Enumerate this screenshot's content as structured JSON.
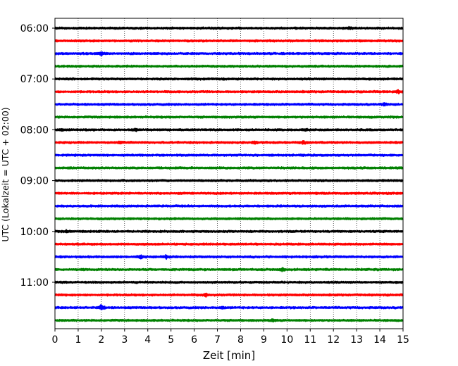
{
  "chart_data": {
    "type": "line",
    "subtype": "helicorder-seismogram",
    "title": "",
    "xlabel": "Zeit  [min]",
    "ylabel": "UTC (Lokalzeit = UTC + 02:00)",
    "xlim": [
      0,
      15
    ],
    "x_ticks": [
      "0",
      "1",
      "2",
      "3",
      "4",
      "5",
      "6",
      "7",
      "8",
      "9",
      "10",
      "11",
      "12",
      "13",
      "14",
      "15"
    ],
    "vertical_grid": "dotted",
    "y_tick_labels": [
      "06:00",
      "07:00",
      "08:00",
      "09:00",
      "10:00",
      "11:00"
    ],
    "trace_colors": [
      "#000000",
      "#ff0000",
      "#0000ff",
      "#008000"
    ],
    "traces_per_hour": 4,
    "minutes_per_trace": 15,
    "trace_count": 24,
    "events": [
      {
        "trace": 0,
        "minute": 12.7,
        "amp": 0.45
      },
      {
        "trace": 2,
        "minute": 2.0,
        "amp": 0.7
      },
      {
        "trace": 5,
        "minute": 14.8,
        "amp": 0.65
      },
      {
        "trace": 6,
        "minute": 14.2,
        "amp": 0.5
      },
      {
        "trace": 8,
        "minute": 0.3,
        "amp": 0.45
      },
      {
        "trace": 8,
        "minute": 3.5,
        "amp": 0.45
      },
      {
        "trace": 8,
        "minute": 10.8,
        "amp": 0.45
      },
      {
        "trace": 9,
        "minute": 2.8,
        "amp": 0.6
      },
      {
        "trace": 9,
        "minute": 8.6,
        "amp": 0.7
      },
      {
        "trace": 9,
        "minute": 10.7,
        "amp": 0.85
      },
      {
        "trace": 16,
        "minute": 0.5,
        "amp": 0.55
      },
      {
        "trace": 18,
        "minute": 3.7,
        "amp": 0.75
      },
      {
        "trace": 18,
        "minute": 4.8,
        "amp": 0.75
      },
      {
        "trace": 19,
        "minute": 9.8,
        "amp": 0.95
      },
      {
        "trace": 21,
        "minute": 6.5,
        "amp": 0.6
      },
      {
        "trace": 22,
        "minute": 2.0,
        "amp": 1.2
      },
      {
        "trace": 22,
        "minute": 7.2,
        "amp": 0.45
      },
      {
        "trace": 23,
        "minute": 9.4,
        "amp": 0.5
      }
    ]
  }
}
